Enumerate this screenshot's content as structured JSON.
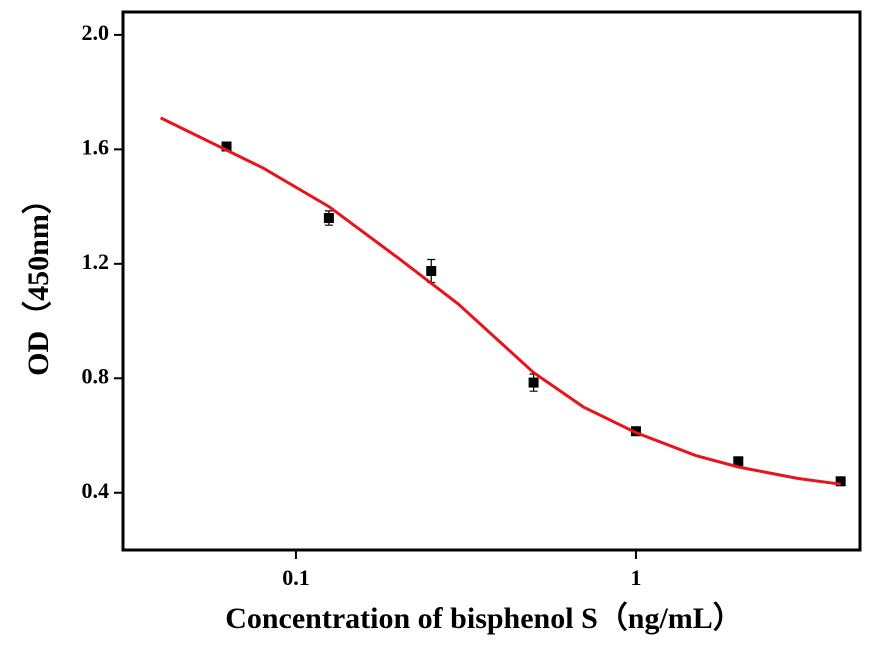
{
  "chart_data": {
    "type": "scatter",
    "xlabel": "Concentration of bisphenol S（ng/mL）",
    "ylabel": "OD（450nm）",
    "xscale": "log",
    "xlim": [
      0.031,
      4.56
    ],
    "ylim": [
      0.2,
      2.08
    ],
    "xticks": [
      0.1,
      1
    ],
    "yticks": [
      {
        "value": 0.4,
        "label": "0.4"
      },
      {
        "value": 0.8,
        "label": "0.8"
      },
      {
        "value": 1.2,
        "label": "1.2"
      },
      {
        "value": 1.6,
        "label": "1.6"
      },
      {
        "value": 2.0,
        "label": "2.0"
      }
    ],
    "series": [
      {
        "style": "points",
        "color": "#000000",
        "x": [
          0.0625,
          0.125,
          0.25,
          0.5,
          1,
          2,
          4
        ],
        "values": [
          1.61,
          1.36,
          1.175,
          0.785,
          0.615,
          0.51,
          0.44
        ],
        "errors": [
          0.01,
          0.025,
          0.04,
          0.03,
          0.01,
          0.01,
          0.01
        ]
      },
      {
        "style": "line",
        "color": "#e8141b",
        "x": [
          0.04,
          0.08,
          0.125,
          0.2,
          0.3,
          0.5,
          0.7,
          1,
          1.5,
          2,
          3,
          4
        ],
        "values": [
          1.71,
          1.535,
          1.4,
          1.22,
          1.06,
          0.82,
          0.7,
          0.61,
          0.53,
          0.49,
          0.45,
          0.43
        ]
      }
    ]
  }
}
